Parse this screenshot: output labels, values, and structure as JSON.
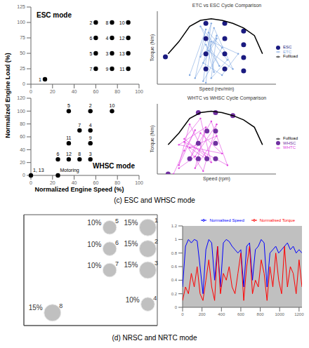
{
  "figure": {
    "y_label": "Normalized Engine Load (%)",
    "x_label": "Normalized Engine Speed (%)",
    "captions": [
      "(c) ESC and WHSC mode",
      "(d) NRSC and NRTC mode"
    ]
  },
  "chart_data": [
    {
      "type": "scatter",
      "title": "ESC mode",
      "xlim": [
        0,
        100
      ],
      "xticks": [
        0,
        20,
        40,
        60,
        80,
        100
      ],
      "ylim": [
        0,
        125
      ],
      "yticks": [
        0,
        25,
        50,
        75,
        100,
        125
      ],
      "color": "#000000",
      "marker": "circle",
      "x": [
        13,
        60,
        75,
        75,
        60,
        60,
        60,
        75,
        75,
        90,
        90,
        90,
        90
      ],
      "y": [
        8,
        100,
        50,
        75,
        50,
        75,
        25,
        100,
        25,
        100,
        25,
        75,
        50
      ],
      "labels": [
        "1",
        "2",
        "3",
        "4",
        "5",
        "6",
        "7",
        "8",
        "9",
        "10",
        "11",
        "12",
        "13"
      ]
    },
    {
      "type": "scatter",
      "title": "WHSC mode",
      "xlim": [
        0,
        100
      ],
      "xticks": [
        0,
        20,
        40,
        60,
        80,
        100
      ],
      "ylim": [
        0,
        120
      ],
      "yticks": [
        0,
        20,
        40,
        60,
        80,
        100,
        120
      ],
      "color": "#000000",
      "marker": "circle",
      "x": [
        0,
        25,
        55,
        55,
        55,
        35,
        25,
        45,
        45,
        55,
        75,
        35,
        35
      ],
      "y": [
        0,
        0,
        100,
        25,
        70,
        100,
        25,
        70,
        25,
        50,
        100,
        50,
        25
      ],
      "labels": [
        "1, 13",
        "Motoring",
        "2",
        "3",
        "4",
        "5",
        "6",
        "7",
        "8",
        "9",
        "10",
        "11",
        "12"
      ]
    },
    {
      "type": "cycle",
      "title": "ETC vs ESC Cycle Comparison",
      "x_label": "Speed (rev/min)",
      "y_label": "Torque (Nm)",
      "xlim": [
        400,
        2600
      ],
      "ylim": [
        0,
        2400
      ],
      "tick_labels": false,
      "legend": "right",
      "series": [
        {
          "name": "ETC",
          "type": "line",
          "marker": "circle",
          "color": "#7fa7e0",
          "x": [
            1000,
            1300,
            1100,
            1500,
            1200,
            1400,
            1250,
            1600,
            1350,
            1450,
            1300,
            1550,
            1200,
            1700,
            1400,
            1500,
            1350,
            1800,
            1450,
            1250,
            1600,
            1900,
            1400,
            1300
          ],
          "y": [
            300,
            1800,
            200,
            1500,
            900,
            2000,
            100,
            1200,
            1700,
            400,
            1300,
            600,
            1900,
            800,
            200,
            1600,
            1100,
            500,
            1850,
            700,
            300,
            1000,
            1400,
            50
          ]
        },
        {
          "name": "ESC",
          "type": "scatter",
          "marker": "circle",
          "color": "#1a1a80",
          "x": [
            550,
            1300,
            1300,
            1300,
            1300,
            1650,
            1650,
            1650,
            1650,
            2000,
            2000,
            2000,
            2000
          ],
          "y": [
            900,
            2000,
            1500,
            1000,
            500,
            2000,
            1500,
            1000,
            500,
            1750,
            1300,
            875,
            440
          ]
        },
        {
          "name": "Fullload",
          "type": "line",
          "marker": "none",
          "color": "#000000",
          "x": [
            600,
            800,
            1000,
            1200,
            1400,
            1600,
            1800,
            2000,
            2200,
            2350
          ],
          "y": [
            1000,
            1400,
            1900,
            2100,
            2150,
            2100,
            2000,
            1850,
            1600,
            1000
          ]
        }
      ]
    },
    {
      "type": "cycle",
      "title": "WHTC vs WHSC Cycle Comparison",
      "x_label": "Speed (rpm)",
      "y_label": "Torque (Nm)",
      "xlim": [
        400,
        2600
      ],
      "ylim": [
        0,
        2400
      ],
      "tick_labels": false,
      "legend": "right",
      "series": [
        {
          "name": "WHTC",
          "type": "line",
          "marker": "circle",
          "color": "#e040e0",
          "x": [
            700,
            900,
            1100,
            800,
            1000,
            1300,
            900,
            1200,
            1400,
            1000,
            1500,
            1100,
            1300,
            800,
            1600,
            1200,
            1000,
            1400,
            1700,
            900,
            1250,
            1500,
            1100,
            800
          ],
          "y": [
            0,
            800,
            1500,
            300,
            1700,
            600,
            1200,
            1900,
            400,
            900,
            1300,
            200,
            1600,
            1000,
            700,
            1400,
            500,
            1800,
            300,
            1100,
            100,
            1700,
            600,
            200
          ]
        },
        {
          "name": "WHSC",
          "type": "scatter",
          "marker": "circle",
          "color": "#7030a0",
          "x": [
            600,
            1480,
            1480,
            1480,
            1160,
            1000,
            1320,
            1320,
            1480,
            1800,
            1160,
            1160
          ],
          "y": [
            0,
            2100,
            525,
            1470,
            2100,
            525,
            1470,
            525,
            1050,
            2000,
            1050,
            525
          ]
        },
        {
          "name": "Fullload",
          "type": "line",
          "marker": "none",
          "color": "#000000",
          "x": [
            600,
            800,
            1000,
            1200,
            1400,
            1600,
            1800,
            2000,
            2200,
            2350
          ],
          "y": [
            1000,
            1400,
            1900,
            2100,
            2150,
            2100,
            2000,
            1850,
            1600,
            1000
          ]
        }
      ]
    },
    {
      "type": "bubble",
      "tick_labels": false,
      "grid": true,
      "xlim": [
        -30,
        110
      ],
      "xticks": [
        60,
        100
      ],
      "ylim": [
        -15,
        115
      ],
      "yticks": [
        10,
        50,
        75,
        100
      ],
      "color": "#c0c0c0",
      "x": [
        100,
        100,
        100,
        100,
        60,
        60,
        60,
        0
      ],
      "y": [
        100,
        75,
        50,
        10,
        100,
        75,
        50,
        0
      ],
      "labels": [
        "1",
        "2",
        "3",
        "4",
        "5",
        "6",
        "7",
        "8"
      ],
      "weights": [
        15,
        15,
        15,
        10,
        10,
        10,
        10,
        15
      ],
      "weight_labels": [
        "15%",
        "15%",
        "15%",
        "10%",
        "10%",
        "10%",
        "10%",
        "15%"
      ]
    },
    {
      "type": "line",
      "xlim": [
        0,
        1230
      ],
      "xticks": [
        0,
        200,
        400,
        600,
        800,
        1000,
        1200
      ],
      "ylim": [
        0,
        1.2
      ],
      "yticks": [
        0,
        0.2,
        0.4,
        0.6,
        0.8,
        1,
        1.2
      ],
      "legend": "upper right",
      "x": [
        0,
        30,
        60,
        90,
        120,
        150,
        180,
        210,
        240,
        270,
        300,
        330,
        360,
        390,
        420,
        450,
        480,
        510,
        540,
        570,
        600,
        630,
        660,
        690,
        720,
        750,
        780,
        810,
        840,
        870,
        900,
        930,
        960,
        990,
        1020,
        1050,
        1080,
        1110,
        1140,
        1170,
        1200,
        1230
      ],
      "series": [
        {
          "name": "Normalised Speed",
          "color": "#0000ff",
          "values": [
            0.3,
            0.9,
            1.0,
            0.95,
            1.0,
            0.98,
            0.6,
            0.2,
            0.85,
            1.0,
            0.95,
            0.4,
            0.9,
            0.3,
            0.95,
            1.0,
            0.97,
            0.9,
            0.85,
            0.8,
            0.85,
            0.3,
            0.9,
            0.95,
            0.4,
            0.85,
            0.9,
            1.0,
            0.95,
            0.3,
            0.8,
            0.85,
            0.9,
            0.8,
            0.85,
            0.9,
            0.95,
            0.85,
            0.9,
            0.8,
            0.85,
            0.8
          ]
        },
        {
          "name": "Normalised Torque",
          "color": "#ff0000",
          "values": [
            0.1,
            0.3,
            0.2,
            0.5,
            0.3,
            0.6,
            0.2,
            0.1,
            0.4,
            0.7,
            0.3,
            0.1,
            0.9,
            0.2,
            0.5,
            0.4,
            0.6,
            0.3,
            0.2,
            0.5,
            0.8,
            0.1,
            0.6,
            0.9,
            0.2,
            0.4,
            0.3,
            0.7,
            0.5,
            0.1,
            0.6,
            0.3,
            0.8,
            0.4,
            0.2,
            0.9,
            0.3,
            0.6,
            0.5,
            0.2,
            0.7,
            0.3
          ]
        }
      ]
    }
  ]
}
